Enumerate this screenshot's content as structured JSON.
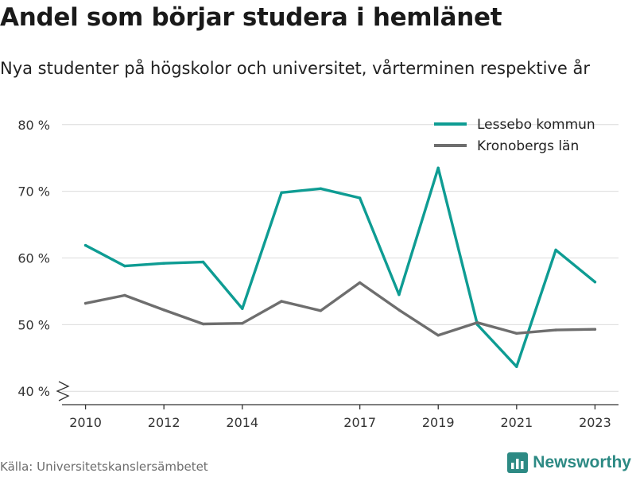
{
  "chart_data": {
    "type": "line",
    "title": "Andel som börjar studera i hemlänet",
    "subtitle": "Nya studenter på högskolor och universitet, vårterminen respektive år",
    "x": [
      2010,
      2011,
      2012,
      2013,
      2014,
      2015,
      2016,
      2017,
      2018,
      2019,
      2020,
      2021,
      2022,
      2023
    ],
    "x_ticks": [
      2010,
      2012,
      2014,
      2017,
      2019,
      2021,
      2023
    ],
    "y_ticks": [
      40,
      50,
      60,
      70,
      80
    ],
    "y_tick_labels": [
      "40 %",
      "50 %",
      "60 %",
      "70 %",
      "80 %"
    ],
    "ylim": [
      38,
      82
    ],
    "xlim": [
      2009.4,
      2023.6
    ],
    "grid": true,
    "legend_position": "top-right",
    "series": [
      {
        "name": "Lessebo kommun",
        "color": "#0e9c93",
        "values": [
          61.9,
          58.8,
          59.2,
          59.4,
          52.4,
          69.8,
          70.4,
          69.0,
          54.5,
          73.5,
          50.0,
          43.7,
          61.2,
          56.4
        ]
      },
      {
        "name": "Kronobergs län",
        "color": "#6e6e6e",
        "values": [
          53.2,
          54.4,
          52.2,
          50.1,
          50.2,
          53.5,
          52.1,
          56.3,
          52.2,
          48.4,
          50.3,
          48.7,
          49.2,
          49.3
        ]
      }
    ],
    "xlabel": "",
    "ylabel": ""
  },
  "source": "Källa: Universitetskanslersämbetet",
  "brand": {
    "name": "Newsworthy",
    "icon": "bar-chart-icon",
    "color": "#2d8a84"
  }
}
